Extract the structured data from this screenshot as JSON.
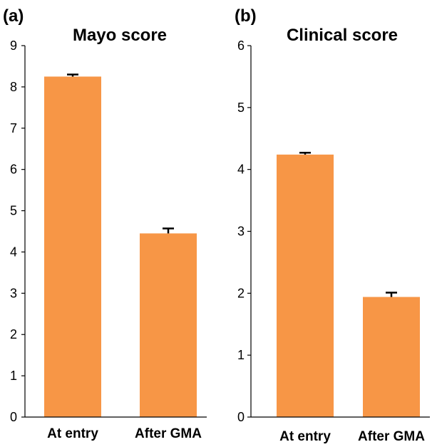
{
  "chart_data": [
    {
      "type": "bar",
      "panel_label": "(a)",
      "title": "Mayo score",
      "categories": [
        "At entry",
        "After GMA"
      ],
      "values": [
        8.25,
        4.45
      ],
      "errors": [
        0.05,
        0.12
      ],
      "ylim": [
        0,
        9
      ],
      "yticks": [
        0,
        1,
        2,
        3,
        4,
        5,
        6,
        7,
        8,
        9
      ],
      "xlabel": "",
      "ylabel": "",
      "grid": false,
      "legend": "none"
    },
    {
      "type": "bar",
      "panel_label": "(b)",
      "title": "Clinical score",
      "categories": [
        "At entry",
        "After GMA"
      ],
      "values": [
        4.24,
        1.94
      ],
      "errors": [
        0.03,
        0.07
      ],
      "ylim": [
        0,
        6
      ],
      "yticks": [
        0,
        1,
        2,
        3,
        4,
        5,
        6
      ],
      "xlabel": "",
      "ylabel": "",
      "grid": false,
      "legend": "none"
    }
  ],
  "colors": {
    "bar": "#f79646",
    "axis": "#000000",
    "error_bar": "#000000"
  }
}
